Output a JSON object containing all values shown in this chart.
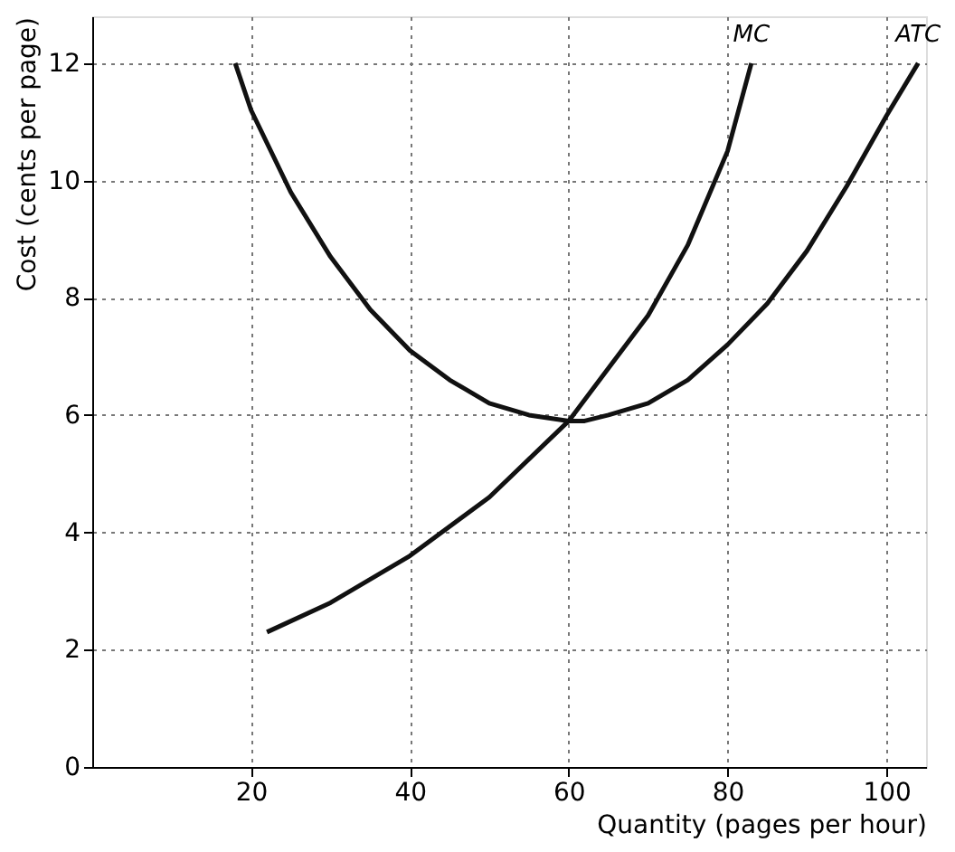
{
  "chart_data": {
    "type": "line",
    "xlabel": "Quantity (pages per hour)",
    "ylabel": "Cost (cents per page)",
    "xlim": [
      0,
      105
    ],
    "ylim": [
      0,
      12.8
    ],
    "xticks": [
      20,
      40,
      60,
      80,
      100
    ],
    "yticks": [
      0,
      2,
      4,
      6,
      8,
      10,
      12
    ],
    "grid": true,
    "line_style": "solid",
    "marker": "none",
    "series": [
      {
        "name": "MC",
        "color": "#111111",
        "x": [
          22,
          30,
          40,
          50,
          60,
          70,
          75,
          80,
          83
        ],
        "values": [
          2.3,
          2.8,
          3.6,
          4.6,
          5.9,
          7.7,
          8.9,
          10.5,
          12
        ]
      },
      {
        "name": "ATC",
        "color": "#111111",
        "x": [
          18,
          20,
          25,
          30,
          35,
          40,
          45,
          50,
          55,
          60,
          62,
          65,
          70,
          75,
          80,
          85,
          90,
          95,
          100,
          104
        ],
        "values": [
          12,
          11.2,
          9.8,
          8.7,
          7.8,
          7.1,
          6.6,
          6.2,
          6.0,
          5.9,
          5.9,
          6.0,
          6.2,
          6.6,
          7.2,
          7.9,
          8.8,
          9.9,
          11.1,
          12
        ]
      }
    ]
  }
}
